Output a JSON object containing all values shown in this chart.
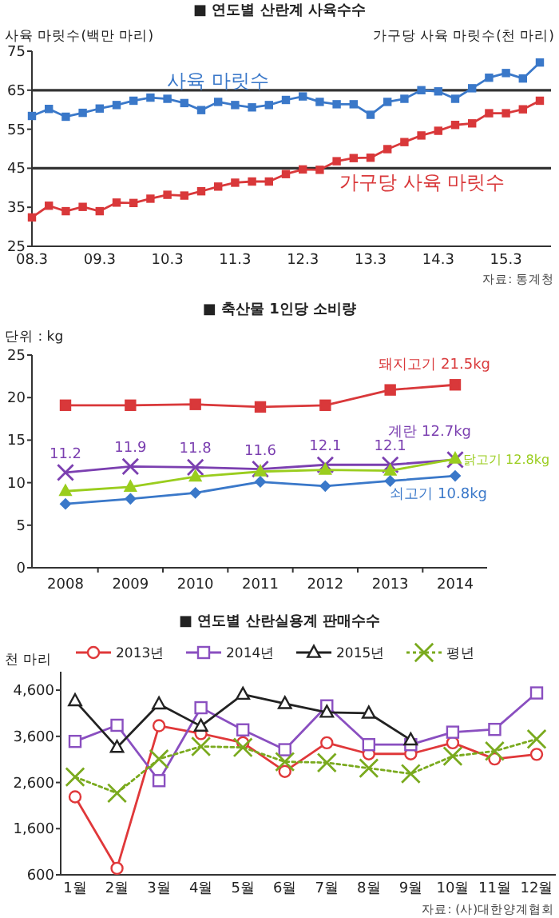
{
  "chart_data": [
    {
      "type": "line",
      "title": "■ 연도별 산란계 사육수수",
      "ylabel": "사육 마릿수(백만 마리)",
      "y2label": "가구당 사육 마릿수(천 마리)",
      "categories": [
        "08.3",
        null,
        null,
        null,
        "09.3",
        null,
        null,
        null,
        "10.3",
        null,
        null,
        null,
        "11.3",
        null,
        null,
        null,
        "12.3",
        null,
        null,
        null,
        "13.3",
        null,
        null,
        null,
        "14.3",
        null,
        null,
        null,
        "15.3",
        null,
        null
      ],
      "ylim": [
        25,
        75
      ],
      "yticks": [
        25,
        35,
        45,
        55,
        65,
        75
      ],
      "marker": "square",
      "ref_lines": [
        {
          "axis": "y",
          "value": 65,
          "color": "#333333"
        },
        {
          "axis": "y",
          "value": 45,
          "color": "#333333"
        }
      ],
      "annotations": [
        "자료: 통계청"
      ],
      "series": [
        {
          "name": "사육 마릿수",
          "color": "#3a78c9",
          "values": [
            58.4,
            60.2,
            58.2,
            59.2,
            60.3,
            61.2,
            62.3,
            63.1,
            62.8,
            61.7,
            59.9,
            62.0,
            61.2,
            60.6,
            61.2,
            62.5,
            63.4,
            62.0,
            61.4,
            61.4,
            58.7,
            62.0,
            62.8,
            65.0,
            64.7,
            62.8,
            65.5,
            68.2,
            69.4,
            68.0,
            72.1
          ]
        },
        {
          "name": "가구당 사육 마릿수",
          "color": "#d9383a",
          "values": [
            32.4,
            35.4,
            34.0,
            35.1,
            34.0,
            36.2,
            36.1,
            37.2,
            38.2,
            38.0,
            39.1,
            40.3,
            41.3,
            41.6,
            41.6,
            43.5,
            44.7,
            44.6,
            46.8,
            47.6,
            47.7,
            49.9,
            51.7,
            53.4,
            54.6,
            56.1,
            56.5,
            59.1,
            59.1,
            60.1,
            62.3
          ]
        }
      ]
    },
    {
      "type": "line",
      "title": "■ 축산물 1인당 소비량",
      "ylabel": "단위 : kg",
      "categories": [
        "2008",
        "2009",
        "2010",
        "2011",
        "2012",
        "2013",
        "2014"
      ],
      "ylim": [
        0,
        25
      ],
      "yticks": [
        0,
        5,
        10,
        15,
        20,
        25
      ],
      "series": [
        {
          "name": "돼지고기 21.5kg",
          "color": "#d9383a",
          "marker": "square",
          "values": [
            19.1,
            19.1,
            19.2,
            18.9,
            19.1,
            20.9,
            21.5
          ]
        },
        {
          "name": "계란 12.7kg",
          "color": "#7b3fb0",
          "marker": "cross",
          "values": [
            11.2,
            11.9,
            11.8,
            11.6,
            12.1,
            12.1,
            12.7
          ],
          "value_labels": [
            "11.2",
            "11.9",
            "11.8",
            "11.6",
            "12.1",
            "12.1",
            null
          ]
        },
        {
          "name": "닭고기 12.8kg",
          "color": "#9acd1e",
          "marker": "triangle",
          "values": [
            9.0,
            9.5,
            10.7,
            11.3,
            11.5,
            11.4,
            12.8
          ]
        },
        {
          "name": "쇠고기 10.8kg",
          "color": "#3a78c9",
          "marker": "diamond",
          "values": [
            7.5,
            8.1,
            8.8,
            10.1,
            9.6,
            10.2,
            10.8
          ]
        }
      ]
    },
    {
      "type": "line",
      "title": "■ 연도별 산란실용계 판매수수",
      "ylabel": "천 마리",
      "categories": [
        "1월",
        "2월",
        "3월",
        "4월",
        "5월",
        "6월",
        "7월",
        "8월",
        "9월",
        "10월",
        "11월",
        "12월"
      ],
      "ylim": [
        600,
        5000
      ],
      "yticks": [
        600,
        {
          "value": 1600,
          "label": "1,600"
        },
        {
          "value": 2600,
          "label": "2,600"
        },
        {
          "value": 3600,
          "label": "3,600"
        },
        {
          "value": 4600,
          "label": "4,600"
        }
      ],
      "legend": "top",
      "annotations": [
        "자료: (사)대한양계협회"
      ],
      "series": [
        {
          "name": "2013년",
          "color": "#e0383a",
          "marker": "circle",
          "values": [
            2290,
            740,
            3830,
            3660,
            3460,
            2840,
            3460,
            3220,
            3220,
            3460,
            3110,
            3210
          ]
        },
        {
          "name": "2014년",
          "color": "#8a4fc0",
          "marker": "square",
          "values": [
            3490,
            3840,
            2640,
            4220,
            3740,
            3310,
            4260,
            3420,
            3420,
            3690,
            3750,
            4540
          ]
        },
        {
          "name": "2015년",
          "color": "#222222",
          "marker": "triangle",
          "values": [
            4370,
            3360,
            4300,
            3820,
            4510,
            4310,
            4120,
            4100,
            3520,
            null,
            null,
            null
          ]
        },
        {
          "name": "평년",
          "color": "#7aaa1e",
          "marker": "cross",
          "line_style": "dotted",
          "values": [
            2720,
            2370,
            3110,
            3380,
            3360,
            3050,
            3030,
            2910,
            2790,
            3170,
            3280,
            3540
          ]
        }
      ]
    }
  ]
}
